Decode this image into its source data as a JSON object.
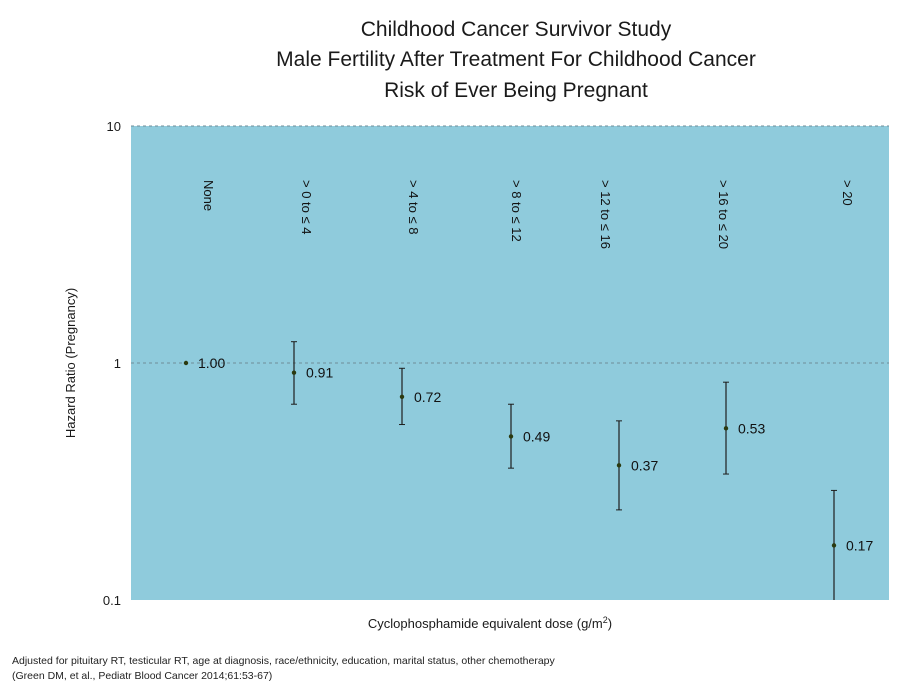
{
  "chart_data": {
    "type": "scatter",
    "title_lines": [
      "Childhood Cancer Survivor Study",
      "Male Fertility After Treatment For Childhood Cancer",
      "Risk of Ever Being Pregnant"
    ],
    "xlabel": "Cyclophosphamide equivalent dose (g/m",
    "xlabel_sup": "2",
    "xlabel_end": ")",
    "ylabel": "Hazard Ratio (Pregnancy)",
    "yscale": "log",
    "ylim": [
      0.1,
      10
    ],
    "yticks": [
      {
        "value": 10,
        "label": "10"
      },
      {
        "value": 1,
        "label": "1"
      },
      {
        "value": 0.1,
        "label": "0.1"
      }
    ],
    "reference_line": 1,
    "grid": "dashed horizontal at 10 and 1",
    "background_color": "#8fcbdc",
    "marker_color": "#2b3a10",
    "categories": [
      "None",
      "> 0 to ≤ 4",
      "> 4 to ≤ 8",
      "> 8 to ≤ 12",
      "> 12 to ≤ 16",
      "> 16 to ≤ 20",
      "> 20"
    ],
    "points": [
      {
        "category": "None",
        "hr": 1.0,
        "label": "1.00",
        "ci": null
      },
      {
        "category": "> 0 to ≤ 4",
        "hr": 0.91,
        "label": "0.91",
        "ci": [
          0.67,
          1.23
        ]
      },
      {
        "category": "> 4 to ≤ 8",
        "hr": 0.72,
        "label": "0.72",
        "ci": [
          0.55,
          0.95
        ]
      },
      {
        "category": "> 8 to ≤ 12",
        "hr": 0.49,
        "label": "0.49",
        "ci": [
          0.36,
          0.67
        ]
      },
      {
        "category": "> 12 to ≤ 16",
        "hr": 0.37,
        "label": "0.37",
        "ci": [
          0.24,
          0.57
        ]
      },
      {
        "category": "> 16 to ≤ 20",
        "hr": 0.53,
        "label": "0.53",
        "ci": [
          0.34,
          0.83
        ]
      },
      {
        "category": "> 20",
        "hr": 0.17,
        "label": "0.17",
        "ci": [
          0.1,
          0.29
        ]
      }
    ],
    "footnotes": [
      "Adjusted for pituitary RT, testicular RT, age at diagnosis, race/ethnicity, education, marital status, other chemotherapy",
      "(Green DM, et al., Pediatr Blood Cancer 2014;61:53-67)"
    ]
  }
}
